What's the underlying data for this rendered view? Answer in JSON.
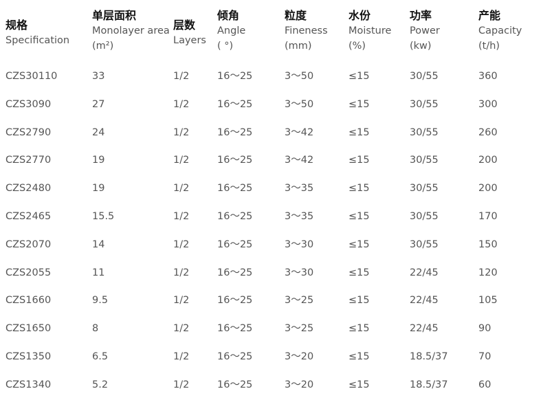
{
  "headers": [
    {
      "cn": "规格",
      "en": "Specification",
      "unit": ""
    },
    {
      "cn": "单层面积",
      "en": "Monolayer area",
      "unit": "(m²)"
    },
    {
      "cn": "层数",
      "en": "Layers",
      "unit": ""
    },
    {
      "cn": "倾角",
      "en": "Angle",
      "unit": "( °)"
    },
    {
      "cn": "粒度",
      "en": "Fineness",
      "unit": "(mm)"
    },
    {
      "cn": "水份",
      "en": "Moisture",
      "unit": "(%)"
    },
    {
      "cn": "功率",
      "en": "Power",
      "unit": "(kw)"
    },
    {
      "cn": "产能",
      "en": "Capacity",
      "unit": "(t/h)"
    }
  ],
  "rows": [
    [
      "CZS30110",
      "33",
      "1/2",
      "16～25",
      "3～50",
      "≤15",
      "30/55",
      "360"
    ],
    [
      "CZS3090",
      "27",
      "1/2",
      "16～25",
      "3～50",
      "≤15",
      "30/55",
      "300"
    ],
    [
      "CZS2790",
      "24",
      "1/2",
      "16～25",
      "3～42",
      "≤15",
      "30/55",
      "260"
    ],
    [
      "CZS2770",
      "19",
      "1/2",
      "16～25",
      "3～42",
      "≤15",
      "30/55",
      "200"
    ],
    [
      "CZS2480",
      "19",
      "1/2",
      "16～25",
      "3～35",
      "≤15",
      "30/55",
      "200"
    ],
    [
      "CZS2465",
      "15.5",
      "1/2",
      "16～25",
      "3～35",
      "≤15",
      "30/55",
      "170"
    ],
    [
      "CZS2070",
      "14",
      "1/2",
      "16～25",
      "3～30",
      "≤15",
      "30/55",
      "150"
    ],
    [
      "CZS2055",
      "11",
      "1/2",
      "16～25",
      "3～30",
      "≤15",
      "22/45",
      "120"
    ],
    [
      "CZS1660",
      "9.5",
      "1/2",
      "16～25",
      "3～25",
      "≤15",
      "22/45",
      "105"
    ],
    [
      "CZS1650",
      "8",
      "1/2",
      "16～25",
      "3～25",
      "≤15",
      "22/45",
      "90"
    ],
    [
      "CZS1350",
      "6.5",
      "1/2",
      "16～25",
      "3～20",
      "≤15",
      "18.5/37",
      "70"
    ],
    [
      "CZS1340",
      "5.2",
      "1/2",
      "16～25",
      "3～20",
      "≤15",
      "18.5/37",
      "60"
    ]
  ]
}
